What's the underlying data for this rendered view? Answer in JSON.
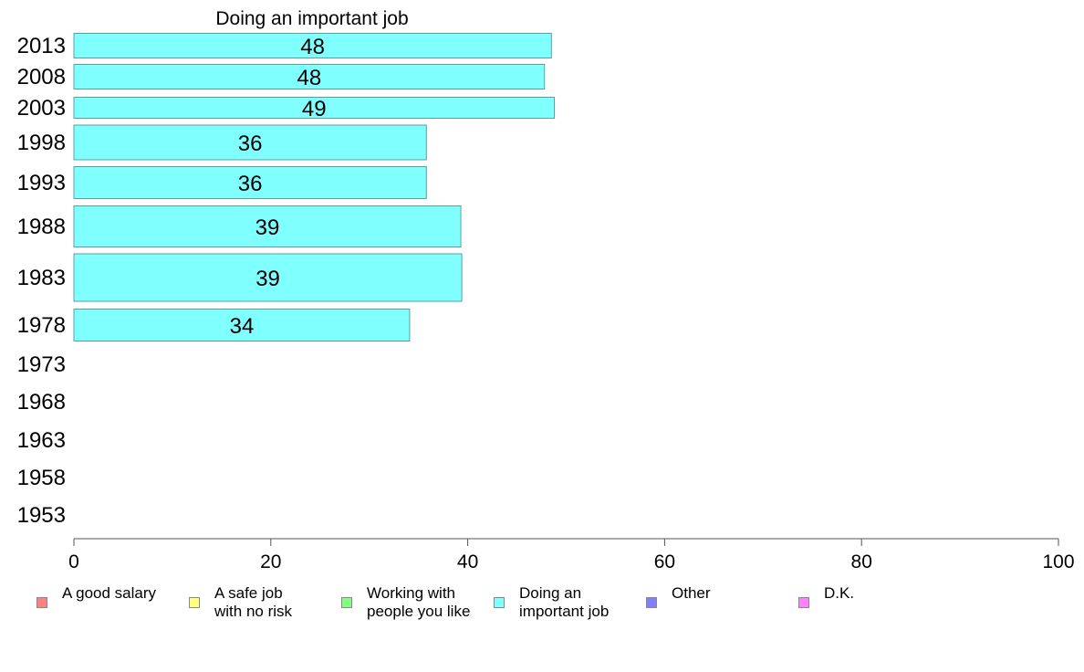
{
  "chart_data": {
    "type": "bar",
    "orientation": "horizontal",
    "title": "Doing an important job",
    "categories": [
      "2013",
      "2008",
      "2003",
      "1998",
      "1993",
      "1988",
      "1983",
      "1978",
      "1973",
      "1968",
      "1963",
      "1958",
      "1953"
    ],
    "values": [
      48,
      48,
      49,
      36,
      36,
      39,
      39,
      34,
      null,
      null,
      null,
      null,
      null
    ],
    "data_labels": [
      "48",
      "48",
      "49",
      "36",
      "36",
      "39",
      "39",
      "34",
      "",
      "",
      "",
      "",
      ""
    ],
    "precise_values": [
      48.5,
      47.8,
      48.8,
      35.8,
      35.8,
      39.3,
      39.4,
      34.1,
      null,
      null,
      null,
      null,
      null
    ],
    "xlim": [
      0,
      100
    ],
    "xticks": [
      "0",
      "20",
      "40",
      "60",
      "80",
      "100"
    ],
    "xlabel": "",
    "ylabel": "",
    "grid": false,
    "bar_color": "#80ffff",
    "legend_placement": "bottom"
  },
  "legend": [
    {
      "label": "A good salary",
      "color": "#ff8080"
    },
    {
      "label": "A safe job\nwith no risk",
      "color": "#ffff80"
    },
    {
      "label": "Working with\npeople you like",
      "color": "#80ff80"
    },
    {
      "label": "Doing an\nimportant job",
      "color": "#80ffff"
    },
    {
      "label": "Other",
      "color": "#8080ff"
    },
    {
      "label": "D.K.",
      "color": "#ff80ff"
    }
  ]
}
